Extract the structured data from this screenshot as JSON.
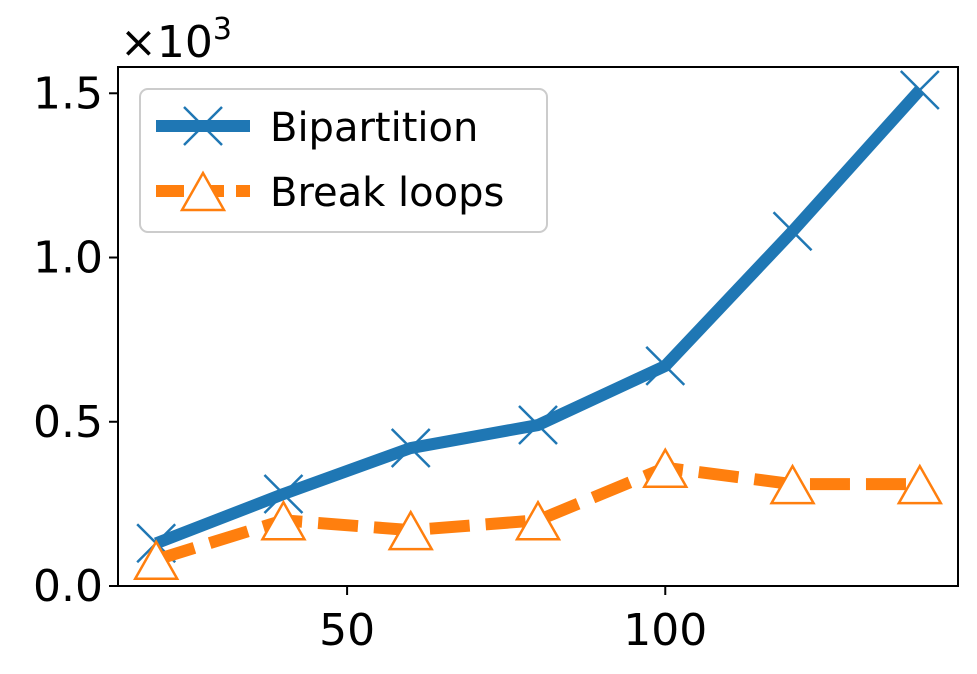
{
  "chart_data": {
    "type": "line",
    "title": "",
    "xlabel": "",
    "ylabel": "",
    "y_scale_label": "×10",
    "y_scale_exponent": "3",
    "xlim": [
      14,
      146
    ],
    "ylim": [
      0,
      1.58
    ],
    "x_ticks": [
      50,
      100
    ],
    "x_tick_labels": [
      "50",
      "100"
    ],
    "y_ticks": [
      0,
      0.5,
      1.0,
      1.5
    ],
    "y_tick_labels": [
      "0.0",
      "0.5",
      "1.0",
      "1.5"
    ],
    "grid": false,
    "legend_position": "upper-left",
    "x": [
      20,
      40,
      60,
      80,
      100,
      120,
      140
    ],
    "series": [
      {
        "name": "Bipartition",
        "values": [
          0.13,
          0.28,
          0.42,
          0.49,
          0.67,
          1.08,
          1.51
        ],
        "color": "#1f77b4",
        "line_style": "solid",
        "marker": "x"
      },
      {
        "name": "Break loops",
        "values": [
          0.08,
          0.2,
          0.17,
          0.2,
          0.36,
          0.31,
          0.31
        ],
        "color": "#ff7f0e",
        "line_style": "dashed",
        "marker": "triangle"
      }
    ]
  }
}
